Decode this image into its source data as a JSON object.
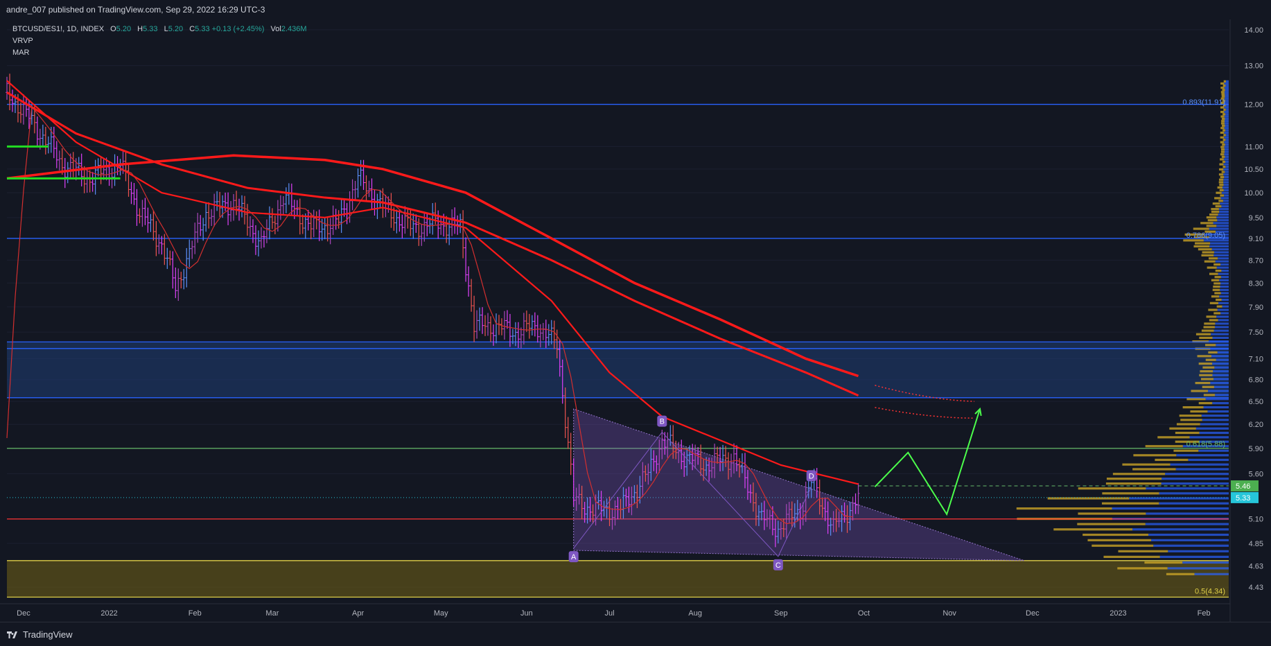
{
  "header": {
    "published": "andre_007 published on TradingView.com, Sep 29, 2022 16:29 UTC-3"
  },
  "legend": {
    "symbol": "BTCUSD/ES1!, 1D, INDEX",
    "o_label": "O",
    "o": "5.20",
    "h_label": "H",
    "h": "5.33",
    "l_label": "L",
    "l": "5.20",
    "c_label": "C",
    "c": "5.33",
    "change": "+0.13 (+2.45%)",
    "vol_label": "Vol",
    "vol": "2.436M",
    "indicator1": "VRVP",
    "indicator2": "MAR"
  },
  "footer": {
    "brand": "TradingView"
  },
  "colors": {
    "bg": "#131722",
    "up": "#5b8ff9",
    "down": "#ef5350",
    "ma": "#ff1a1a",
    "ma_green": "#22dd22",
    "hline": "#2962ff",
    "zone": "#1e3a6e",
    "gold": "#c9a227",
    "tri": "#7e57c2",
    "fib618": "#66bb6a"
  },
  "chart_data": {
    "type": "line",
    "title": "",
    "y_axis_ticks": [
      "14.00",
      "13.00",
      "12.00",
      "11.00",
      "10.50",
      "10.00",
      "9.50",
      "9.10",
      "8.70",
      "8.30",
      "7.90",
      "7.50",
      "7.10",
      "6.80",
      "6.50",
      "6.20",
      "5.90",
      "5.60",
      "5.10",
      "4.85",
      "4.63",
      "4.43"
    ],
    "x_axis_ticks": [
      "Dec",
      "2022",
      "Feb",
      "Mar",
      "Apr",
      "May",
      "Jun",
      "Jul",
      "Aug",
      "Sep",
      "Oct",
      "Nov",
      "Dec",
      "2023",
      "Feb"
    ],
    "ylim": [
      4.3,
      14.3
    ],
    "y_scale": "log",
    "series": [
      {
        "x": [
          "2021-11-25",
          "2021-12-05",
          "2021-12-15",
          "2021-12-25",
          "2022-01-05",
          "2022-01-12",
          "2022-01-20",
          "2022-01-25",
          "2022-02-05",
          "2022-02-15",
          "2022-02-25",
          "2022-03-05",
          "2022-03-15",
          "2022-03-25",
          "2022-04-01",
          "2022-04-10",
          "2022-04-20",
          "2022-04-30",
          "2022-05-08",
          "2022-05-13",
          "2022-05-20",
          "2022-05-28",
          "2022-06-05",
          "2022-06-12",
          "2022-06-18",
          "2022-06-25",
          "2022-07-05",
          "2022-07-15",
          "2022-07-20",
          "2022-07-28",
          "2022-08-05",
          "2022-08-15",
          "2022-08-25",
          "2022-08-31",
          "2022-09-08",
          "2022-09-12",
          "2022-09-20",
          "2022-09-29"
        ],
        "values": [
          12.3,
          11.5,
          10.6,
          10.3,
          10.6,
          9.6,
          9.0,
          8.2,
          9.6,
          9.8,
          9.0,
          9.9,
          9.3,
          9.4,
          10.3,
          9.7,
          9.3,
          9.4,
          9.3,
          7.6,
          7.6,
          7.5,
          7.6,
          7.3,
          5.3,
          5.2,
          5.2,
          5.6,
          6.0,
          5.8,
          5.7,
          5.8,
          5.1,
          5.0,
          5.2,
          5.5,
          5.0,
          5.33
        ]
      }
    ],
    "horizontal_levels": [
      12.0,
      9.1,
      7.35,
      7.25,
      6.55,
      5.9,
      5.1,
      4.68,
      4.34
    ],
    "fib_labels": [
      {
        "text": "0.893(11.91)",
        "y": 11.91
      },
      {
        "text": "0.786(9.05)",
        "y": 9.05
      },
      {
        "text": "0.618(5.88)",
        "y": 5.88
      },
      {
        "text": "0.5(4.34)",
        "y": 4.34
      }
    ],
    "zone": {
      "from": 6.55,
      "to": 7.35
    },
    "support_zone": {
      "from": 4.34,
      "to": 4.68
    },
    "triangle": {
      "points": [
        {
          "x": "2022-06-18",
          "y": 6.4
        },
        {
          "x": "2022-06-18",
          "y": 4.78
        },
        {
          "x": "2022-11-28",
          "y": 4.68
        }
      ]
    },
    "pattern_points": [
      {
        "label": "A",
        "x": "2022-06-18",
        "y": 4.8
      },
      {
        "label": "B",
        "x": "2022-07-20",
        "y": 6.1
      },
      {
        "label": "C",
        "x": "2022-08-31",
        "y": 4.72
      },
      {
        "label": "D",
        "x": "2022-09-12",
        "y": 5.45
      }
    ],
    "projection": [
      {
        "x": "2022-10-05",
        "y": 5.45
      },
      {
        "x": "2022-10-17",
        "y": 5.85
      },
      {
        "x": "2022-10-31",
        "y": 5.15
      },
      {
        "x": "2022-11-12",
        "y": 6.4
      }
    ],
    "ma_long": {
      "x": [
        "2021-11-25",
        "2022-01-05",
        "2022-02-15",
        "2022-03-20",
        "2022-04-10",
        "2022-05-10",
        "2022-06-10",
        "2022-07-10",
        "2022-08-10",
        "2022-09-10",
        "2022-09-29"
      ],
      "values": [
        10.3,
        10.6,
        10.8,
        10.7,
        10.5,
        10.0,
        9.1,
        8.3,
        7.7,
        7.1,
        6.85
      ]
    },
    "ma_mid": {
      "x": [
        "2021-11-25",
        "2021-12-20",
        "2022-01-20",
        "2022-02-20",
        "2022-03-20",
        "2022-04-10",
        "2022-05-10",
        "2022-06-10",
        "2022-07-10",
        "2022-08-10",
        "2022-09-10",
        "2022-09-29"
      ],
      "values": [
        12.3,
        11.3,
        10.6,
        10.1,
        9.9,
        9.8,
        9.4,
        8.7,
        8.0,
        7.4,
        6.9,
        6.58
      ]
    },
    "ma_short": {
      "x": [
        "2021-11-25",
        "2021-12-20",
        "2022-01-20",
        "2022-02-20",
        "2022-03-20",
        "2022-04-10",
        "2022-05-10",
        "2022-06-10",
        "2022-07-01",
        "2022-07-20",
        "2022-08-10",
        "2022-09-01",
        "2022-09-20",
        "2022-09-29"
      ],
      "values": [
        12.6,
        11.1,
        10.0,
        9.6,
        9.5,
        9.7,
        9.3,
        8.0,
        6.9,
        6.3,
        6.0,
        5.7,
        5.55,
        5.48
      ]
    },
    "current_price": 5.33,
    "alert_price": 5.46,
    "price_tags": [
      "5.46",
      "5.33"
    ],
    "volume_profile": "VRVP"
  }
}
